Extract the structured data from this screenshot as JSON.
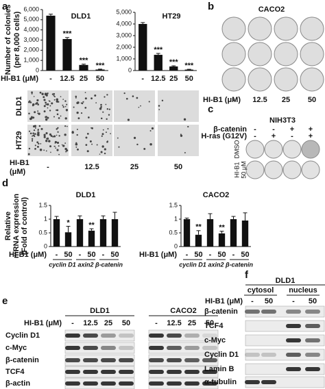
{
  "panel_labels": [
    "a",
    "b",
    "c",
    "d",
    "e",
    "f"
  ],
  "chart_data": [
    {
      "type": "bar",
      "title": "DLD1",
      "ylabel": [
        "Number of colonies",
        "(per 8,000 cells)"
      ],
      "x_label": "HI-B1 (μM)",
      "categories": [
        "-",
        "12.5",
        "25",
        "50"
      ],
      "values": [
        5400,
        3100,
        550,
        100
      ],
      "errors": [
        150,
        150,
        80,
        40
      ],
      "significance": [
        null,
        "***",
        "***",
        "***"
      ],
      "color": "#111111",
      "ylim": [
        0,
        6000
      ],
      "yticks": [
        0,
        {
          "value": 1000,
          "label": "1,000"
        },
        {
          "value": 2000,
          "label": "2,000"
        },
        {
          "value": 3000,
          "label": "3,000"
        },
        {
          "value": 4000,
          "label": "4,000"
        },
        {
          "value": 5000,
          "label": "5,000"
        },
        {
          "value": 6000,
          "label": "6,000"
        }
      ]
    },
    {
      "type": "bar",
      "title": "HT29",
      "categories": [
        "-",
        "12.5",
        "25",
        "50"
      ],
      "values": [
        4000,
        1350,
        350,
        80
      ],
      "errors": [
        120,
        120,
        60,
        30
      ],
      "significance": [
        null,
        "***",
        "***",
        "***"
      ],
      "color": "#111111",
      "ylim": [
        0,
        5000
      ],
      "yticks": [
        0,
        {
          "value": 1000,
          "label": "1,000"
        },
        {
          "value": 2000,
          "label": "2,000"
        },
        {
          "value": 3000,
          "label": "3,000"
        },
        {
          "value": 4000,
          "label": "4,000"
        },
        {
          "value": 5000,
          "label": "5,000"
        }
      ]
    },
    {
      "type": "bar",
      "title": "DLD1",
      "ylabel": [
        "Relative",
        "mRNA expression",
        "(Fold of control)"
      ],
      "x_label": "HI-B1 (μM)",
      "categories": [
        "-",
        "50",
        "-",
        "50",
        "-",
        "50"
      ],
      "groups": [
        "cyclin D1",
        "axin2",
        "β-catenin"
      ],
      "values": [
        1,
        0.52,
        1,
        0.58,
        1,
        1
      ],
      "errors": [
        0.1,
        0.22,
        0.12,
        0.07,
        0.12,
        0.25
      ],
      "significance": [
        null,
        "*",
        null,
        "**",
        null,
        null
      ],
      "color": "#111111",
      "ylim": [
        0,
        1.5
      ],
      "yticks": [
        0,
        0.5,
        1,
        1.5
      ]
    },
    {
      "type": "bar",
      "title": "CACO2",
      "x_label": "HI-B1 (μM)",
      "categories": [
        "-",
        "50",
        "-",
        "50",
        "-",
        "50"
      ],
      "groups": [
        "cyclin D1",
        "axin2",
        "β-catenin"
      ],
      "values": [
        1,
        0.43,
        1,
        0.48,
        1,
        0.95
      ],
      "errors": [
        0.04,
        0.15,
        0.2,
        0.08,
        0.1,
        0.28
      ],
      "significance": [
        null,
        "**",
        null,
        "**",
        null,
        null
      ],
      "color": "#111111",
      "ylim": [
        0,
        1.5
      ],
      "yticks": [
        0,
        0.5,
        1,
        1.5
      ]
    }
  ],
  "panel_a_images": {
    "rows": [
      "DLD1",
      "HT29"
    ],
    "x_label": [
      "HI-B1",
      "(μM)"
    ],
    "categories": [
      "-",
      "12.5",
      "25",
      "50"
    ]
  },
  "panel_b": {
    "title": "CACO2",
    "x_label": "HI-B1 (μM)",
    "categories": [
      "-",
      "12.5",
      "25",
      "50"
    ]
  },
  "panel_c": {
    "title": "NIH3T3",
    "conditions": [
      {
        "name": "β-catenin",
        "marks": [
          "-",
          "-",
          "+",
          "+"
        ]
      },
      {
        "name": "H-ras (G12V)",
        "marks": [
          "-",
          "+",
          "-",
          "+"
        ]
      }
    ],
    "rows": [
      [
        "DMSO"
      ],
      [
        "HI-B1",
        "50 μM"
      ]
    ]
  },
  "panel_e": {
    "treatment_label": "HI-B1 (μM)",
    "groups": [
      {
        "name": "DLD1",
        "lanes": [
          "-",
          "12.5",
          "25",
          "50"
        ]
      },
      {
        "name": "CACO2",
        "lanes": [
          "-",
          "12.5",
          "25",
          "50"
        ]
      }
    ],
    "rows": [
      "Cyclin D1",
      "c-Myc",
      "β-catenin",
      "TCF4",
      "β-actin"
    ]
  },
  "panel_f": {
    "title": "DLD1",
    "treatment_label": "HI-B1 (μM)",
    "groups": [
      {
        "name": "cytosol",
        "lanes": [
          "-",
          "50"
        ]
      },
      {
        "name": "nucleus",
        "lanes": [
          "-",
          "50"
        ]
      }
    ],
    "rows": [
      "β-catenin",
      "TCF4",
      "c-Myc",
      "Cyclin D1",
      "Lamin B",
      "α-tubulin"
    ]
  }
}
